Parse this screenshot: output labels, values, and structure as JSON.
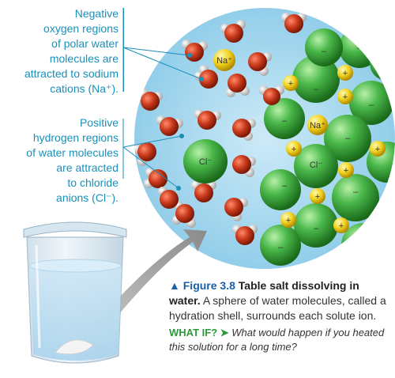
{
  "labels": {
    "top": [
      "Negative",
      "oxygen regions",
      "of polar water",
      "molecules are",
      "attracted to sodium",
      "cations (Na⁺)."
    ],
    "mid": [
      "Positive",
      "hydrogen regions",
      "of water molecules",
      "are attracted",
      "to chloride",
      "anions (Cl⁻)."
    ]
  },
  "ions": {
    "sodium": "Na⁺",
    "chloride": "Cl⁻"
  },
  "caption": {
    "fig_label": "▲ Figure 3.8",
    "fig_title": "Table salt dissolving in water.",
    "body": "A sphere of water molecules, called a hydration shell, surrounds each solute ion."
  },
  "what_if": {
    "label": "WHAT IF? ➤",
    "text": "What would happen if you heated this solution for a long time?"
  },
  "colors": {
    "accent": "#1a8fb8",
    "figure_blue": "#1a5fa8",
    "whatif_green": "#2a9a3a",
    "water_bg": "#a8d8ef",
    "oxygen": "#c8381a",
    "hydrogen": "#e8e8e8",
    "sodium": "#f2d21e",
    "chloride": "#3aa83a"
  }
}
